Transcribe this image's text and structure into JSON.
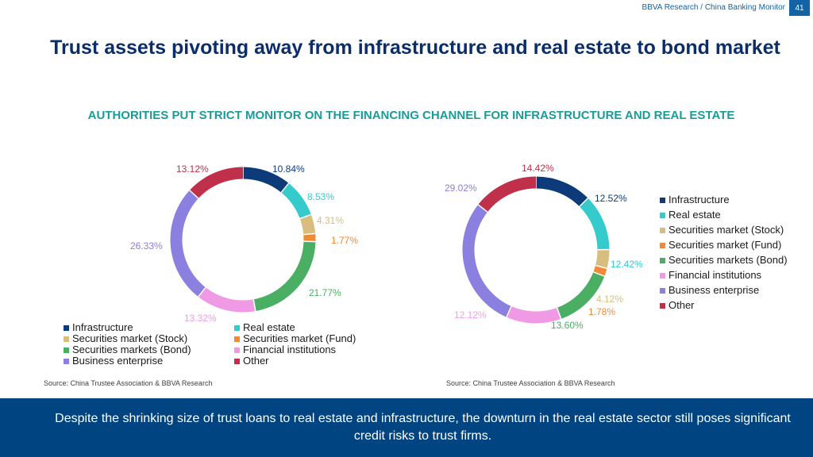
{
  "header": {
    "source_label": "BBVA Research / China Banking Monitor",
    "page_number": "41"
  },
  "title": "Trust assets pivoting away from infrastructure and real estate to bond market",
  "subtitle": "AUTHORITIES PUT STRICT MONITOR ON THE FINANCING CHANNEL FOR INFRASTRUCTURE AND REAL ESTATE",
  "sources": [
    "Source: China Trustee Association & BBVA Research",
    "Source: China Trustee Association & BBVA Research"
  ],
  "footer": {
    "text": "Despite the shrinking size of trust loans to real estate and infrastructure, the downturn in the real estate sector still poses significant credit risks to trust firms."
  },
  "colors": {
    "header_blue": "#1464a5",
    "title_navy": "#0b2d6b",
    "subtitle_teal": "#1a9b9b",
    "footer_blue": "#004481"
  },
  "chart_data": [
    {
      "type": "pie",
      "donut": true,
      "legend_position": "bottom",
      "categories": [
        "Infrastructure",
        "Real estate",
        "Securities market (Stock)",
        "Securities market (Fund)",
        "Securities markets (Bond)",
        "Financial institutions",
        "Business enterprise",
        "Other"
      ],
      "values": [
        10.84,
        8.53,
        4.31,
        1.77,
        21.77,
        13.32,
        26.33,
        13.12
      ],
      "labels": [
        "10.84%",
        "8.53%",
        "4.31%",
        "1.77%",
        "21.77%",
        "13.32%",
        "26.33%",
        "13.12%"
      ],
      "colors": [
        "#0d3b7a",
        "#35cbcc",
        "#d8bd7e",
        "#ef8a38",
        "#4aaf63",
        "#f09ae6",
        "#8b7fe0",
        "#c0304b"
      ]
    },
    {
      "type": "pie",
      "donut": true,
      "legend_position": "right",
      "categories": [
        "Infrastructure",
        "Real estate",
        "Securities market (Stock)",
        "Securities market (Fund)",
        "Securities markets (Bond)",
        "Financial institutions",
        "Business enterprise",
        "Other"
      ],
      "values": [
        12.52,
        12.42,
        4.12,
        1.78,
        13.6,
        12.12,
        29.02,
        14.42
      ],
      "labels": [
        "12.52%",
        "12.42%",
        "4.12%",
        "1.78%",
        "13.60%",
        "12.12%",
        "29.02%",
        "14.42%"
      ],
      "colors": [
        "#0d3b7a",
        "#35cbcc",
        "#d8bd7e",
        "#ef8a38",
        "#4aaf63",
        "#f09ae6",
        "#8b7fe0",
        "#c0304b"
      ]
    }
  ]
}
